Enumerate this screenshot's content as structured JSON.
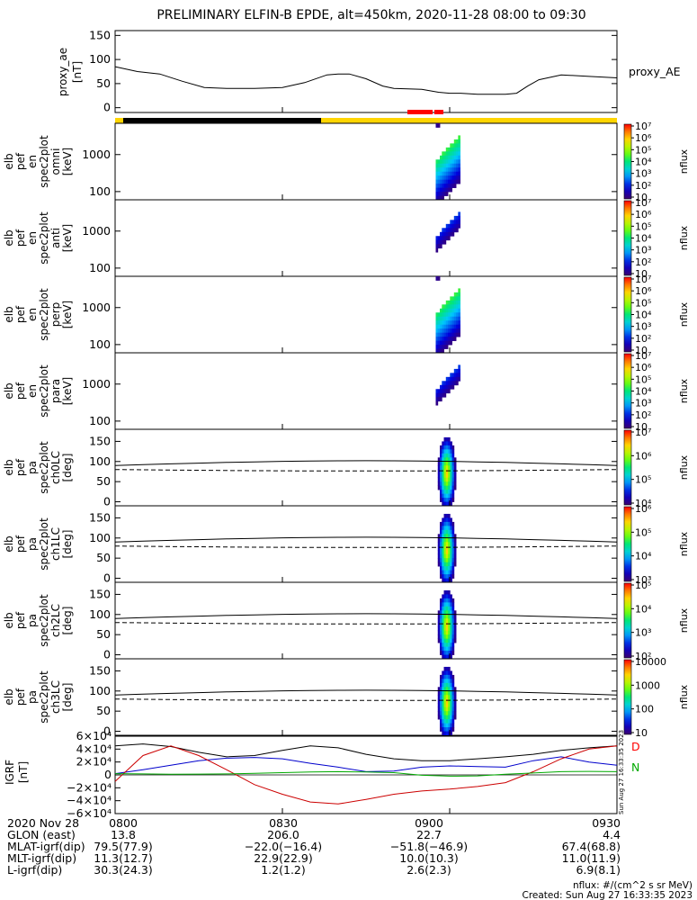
{
  "title": "PRELIMINARY ELFIN-B EPDE, alt=450km, 2020-11-28 08:00 to 09:30",
  "colors": {
    "ae_line": "#000000",
    "bar_night": "#000000",
    "bar_day": "#ffd500",
    "bar_science": "#ff0000",
    "bx": "#000000",
    "by": "#0000cc",
    "bz": "#cc0000",
    "btot": "#00aa00"
  },
  "chart_data": [
    {
      "type": "line",
      "panel": "proxy_ae",
      "ylabel_lines": [
        "proxy_ae",
        "[nT]"
      ],
      "legend": "proxy_AE",
      "yticks": [
        "0",
        "50",
        "100",
        "150"
      ],
      "ylim": [
        -10,
        160
      ],
      "x_minutes": [
        0,
        4,
        8,
        12,
        16,
        20,
        25,
        30,
        34,
        38,
        40,
        42,
        45,
        48,
        50,
        55,
        58,
        60,
        62,
        65,
        68,
        70,
        72,
        74,
        76,
        80,
        85,
        90
      ],
      "y": [
        85,
        75,
        70,
        55,
        42,
        40,
        40,
        42,
        52,
        68,
        70,
        70,
        60,
        45,
        40,
        38,
        32,
        30,
        30,
        28,
        28,
        28,
        30,
        45,
        58,
        68,
        65,
        62
      ]
    },
    {
      "type": "heatmap",
      "panel": "en_omni",
      "ylabel_lines": [
        "elb",
        "pef",
        "en",
        "spec2plot",
        "omni",
        "[keV]"
      ],
      "yticks": [
        "100",
        "1000"
      ],
      "colorbar": {
        "label": "nflux",
        "ticks": [
          "10",
          "10²",
          "10³",
          "10⁴",
          "10⁵",
          "10⁶",
          "10⁷"
        ]
      }
    },
    {
      "type": "heatmap",
      "panel": "en_anti",
      "ylabel_lines": [
        "elb",
        "pef",
        "en",
        "spec2plot",
        "anti",
        "[keV]"
      ],
      "yticks": [
        "100",
        "1000"
      ],
      "colorbar": {
        "label": "nflux",
        "ticks": [
          "10",
          "10²",
          "10³",
          "10⁴",
          "10⁵",
          "10⁶",
          "10⁷"
        ]
      }
    },
    {
      "type": "heatmap",
      "panel": "en_perp",
      "ylabel_lines": [
        "elb",
        "pef",
        "en",
        "spec2plot",
        "perp",
        "[keV]"
      ],
      "yticks": [
        "100",
        "1000"
      ],
      "colorbar": {
        "label": "nflux",
        "ticks": [
          "10",
          "10²",
          "10³",
          "10⁴",
          "10⁵",
          "10⁶",
          "10⁷"
        ]
      }
    },
    {
      "type": "heatmap",
      "panel": "en_para",
      "ylabel_lines": [
        "elb",
        "pef",
        "en",
        "spec2plot",
        "para",
        "[keV]"
      ],
      "yticks": [
        "100",
        "1000"
      ],
      "colorbar": {
        "label": "nflux",
        "ticks": [
          "10",
          "10²",
          "10³",
          "10⁴",
          "10⁵",
          "10⁶",
          "10⁷"
        ]
      }
    },
    {
      "type": "heatmap",
      "panel": "ch0LC",
      "ylabel_lines": [
        "elb",
        "pef",
        "pa",
        "spec2plot",
        "ch0LC",
        "[deg]"
      ],
      "yticks": [
        "0",
        "50",
        "100",
        "150"
      ],
      "colorbar": {
        "label": "nflux",
        "ticks": [
          "10⁴",
          "10⁵",
          "10⁶",
          "10⁷"
        ]
      }
    },
    {
      "type": "heatmap",
      "panel": "ch1LC",
      "ylabel_lines": [
        "elb",
        "pef",
        "pa",
        "spec2plot",
        "ch1LC",
        "[deg]"
      ],
      "yticks": [
        "0",
        "50",
        "100",
        "150"
      ],
      "colorbar": {
        "label": "nflux",
        "ticks": [
          "10³",
          "10⁴",
          "10⁵",
          "10⁶"
        ]
      }
    },
    {
      "type": "heatmap",
      "panel": "ch2LC",
      "ylabel_lines": [
        "elb",
        "pef",
        "pa",
        "spec2plot",
        "ch2LC",
        "[deg]"
      ],
      "yticks": [
        "0",
        "50",
        "100",
        "150"
      ],
      "colorbar": {
        "label": "nflux",
        "ticks": [
          "10²",
          "10³",
          "10⁴",
          "10⁵"
        ]
      }
    },
    {
      "type": "heatmap",
      "panel": "ch3LC",
      "ylabel_lines": [
        "elb",
        "pef",
        "pa",
        "spec2plot",
        "ch3LC",
        "[deg]"
      ],
      "yticks": [
        "0",
        "50",
        "100",
        "150"
      ],
      "colorbar": {
        "label": "nflux",
        "ticks": [
          "10",
          "100",
          "1000",
          "10000"
        ]
      }
    },
    {
      "type": "line",
      "panel": "IGRF",
      "ylabel_lines": [
        "IGRF",
        "[nT]"
      ],
      "yticks": [
        "−6×10⁴",
        "−4×10⁴",
        "−2×10⁴",
        "0",
        "2×10⁴",
        "4×10⁴",
        "6×10⁴"
      ],
      "ylim": [
        -60000,
        60000
      ],
      "side_labels": [
        "D",
        "N"
      ],
      "x_minutes": [
        0,
        5,
        10,
        15,
        20,
        25,
        30,
        35,
        40,
        45,
        50,
        55,
        60,
        65,
        70,
        75,
        80,
        85,
        90
      ],
      "series": [
        {
          "color_key": "bx",
          "values": [
            45000,
            48000,
            44000,
            35000,
            28000,
            30000,
            38000,
            45000,
            42000,
            32000,
            25000,
            22000,
            22000,
            25000,
            28000,
            32000,
            38000,
            42000,
            45000
          ]
        },
        {
          "color_key": "by",
          "values": [
            2000,
            8000,
            15000,
            22000,
            26000,
            27000,
            25000,
            18000,
            12000,
            5000,
            6000,
            12000,
            14000,
            13000,
            12000,
            22000,
            28000,
            20000,
            15000
          ]
        },
        {
          "color_key": "bz",
          "values": [
            -10000,
            30000,
            45000,
            30000,
            8000,
            -15000,
            -30000,
            -42000,
            -45000,
            -38000,
            -30000,
            -25000,
            -22000,
            -18000,
            -12000,
            5000,
            25000,
            40000,
            45000
          ]
        },
        {
          "color_key": "btot",
          "values": [
            2000,
            1500,
            1000,
            1200,
            1500,
            2500,
            3500,
            4500,
            5000,
            4500,
            3500,
            -500,
            -2000,
            -1500,
            1000,
            3000,
            5000,
            5500,
            5000
          ]
        }
      ]
    }
  ],
  "xaxis": {
    "labels": [
      "0800",
      "0830",
      "0900",
      "0930"
    ],
    "minutes": [
      0,
      30,
      60,
      90
    ]
  },
  "info_rows": [
    {
      "label": "2020 Nov 28",
      "values": [
        "0800",
        "0830",
        "0900",
        "0930"
      ]
    },
    {
      "label": "GLON (east)",
      "values": [
        "13.8",
        "206.0",
        "22.7",
        "4.4"
      ]
    },
    {
      "label": "MLAT-igrf(dip)",
      "values": [
        "79.5(77.9)",
        "−22.0(−16.4)",
        "−51.8(−46.9)",
        "67.4(68.8)"
      ]
    },
    {
      "label": "MLT-igrf(dip)",
      "values": [
        "11.3(12.7)",
        "22.9(22.9)",
        "10.0(10.3)",
        "11.0(11.9)"
      ]
    },
    {
      "label": "L-igrf(dip)",
      "values": [
        "30.3(24.3)",
        "1.2(1.2)",
        "2.6(2.3)",
        "6.9(8.1)"
      ]
    }
  ],
  "footer": {
    "units": "nflux: #/(cm^2 s sr MeV)",
    "created": "Created: Sun Aug 27 16:33:35 2023",
    "side_stamp": "Sun Aug 27 16:33:35 2023"
  }
}
